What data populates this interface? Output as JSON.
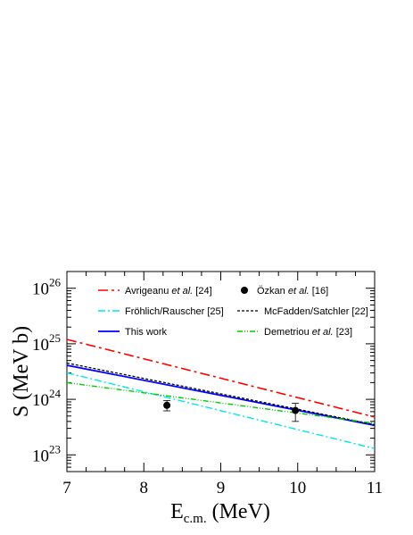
{
  "chart_data": {
    "type": "line",
    "title": "",
    "xlabel": {
      "main": "E",
      "sub": "c.m.",
      "unit": " (MeV)"
    },
    "ylabel": "S (MeV b)",
    "xlim": [
      7,
      11
    ],
    "ylim": [
      5e+22,
      2e+26
    ],
    "yscale": "log",
    "grid": false,
    "legend_position": "top",
    "x_ticks": [
      7,
      8,
      9,
      10,
      11
    ],
    "y_ticks": [
      {
        "value": 1e+23,
        "base": "10",
        "exp": "23"
      },
      {
        "value": 1e+24,
        "base": "10",
        "exp": "24"
      },
      {
        "value": 1e+25,
        "base": "10",
        "exp": "25"
      },
      {
        "value": 1e+26,
        "base": "10",
        "exp": "26"
      }
    ],
    "series": [
      {
        "id": "avrigeanu",
        "label_pre": "Avrigeanu ",
        "label_it": "et al.",
        "label_post": " [24]",
        "color": "#ff0000",
        "dash": "11,4,3,4",
        "width": 1.6,
        "x": [
          7,
          11
        ],
        "y": [
          1.2e+25,
          4.8e+23
        ]
      },
      {
        "id": "frohlich",
        "label_pre": "Fröhlich/Rauscher [25]",
        "label_it": "",
        "label_post": "",
        "color": "#00e5ee",
        "dash": "8,3,2,3",
        "width": 1.4,
        "x": [
          7,
          11
        ],
        "y": [
          3e+24,
          1.3e+23
        ]
      },
      {
        "id": "thiswork",
        "label_pre": "This work",
        "label_it": "",
        "label_post": "",
        "color": "#0000ff",
        "dash": "",
        "width": 1.8,
        "x": [
          7,
          11
        ],
        "y": [
          4.1e+24,
          3.4e+23
        ]
      },
      {
        "id": "mcfadden",
        "label_pre": "McFadden/Satchler [22]",
        "label_it": "",
        "label_post": "",
        "color": "#000000",
        "dash": "3,2",
        "width": 1.3,
        "x": [
          7,
          11
        ],
        "y": [
          4.5e+24,
          3.5e+23
        ]
      },
      {
        "id": "demetriou",
        "label_pre": "Demetriou ",
        "label_it": "et al.",
        "label_post": " [23]",
        "color": "#00cc00",
        "dash": "6,2,1,2,1,2",
        "width": 1.4,
        "x": [
          7,
          11
        ],
        "y": [
          2e+24,
          3.7e+23
        ]
      }
    ],
    "points": {
      "label_pre": "Özkan ",
      "label_it": "et al.",
      "label_post": " [16]",
      "color": "#000000",
      "data": [
        {
          "x": 8.3,
          "y": 7.8e+23,
          "ylo": 6.2e+23,
          "yhi": 9.5e+23
        },
        {
          "x": 9.97,
          "y": 6.3e+23,
          "ylo": 4e+23,
          "yhi": 8.5e+23
        }
      ]
    },
    "legend_order": [
      [
        "avrigeanu",
        "points"
      ],
      [
        "frohlich",
        "mcfadden"
      ],
      [
        "thiswork",
        "demetriou"
      ]
    ]
  }
}
